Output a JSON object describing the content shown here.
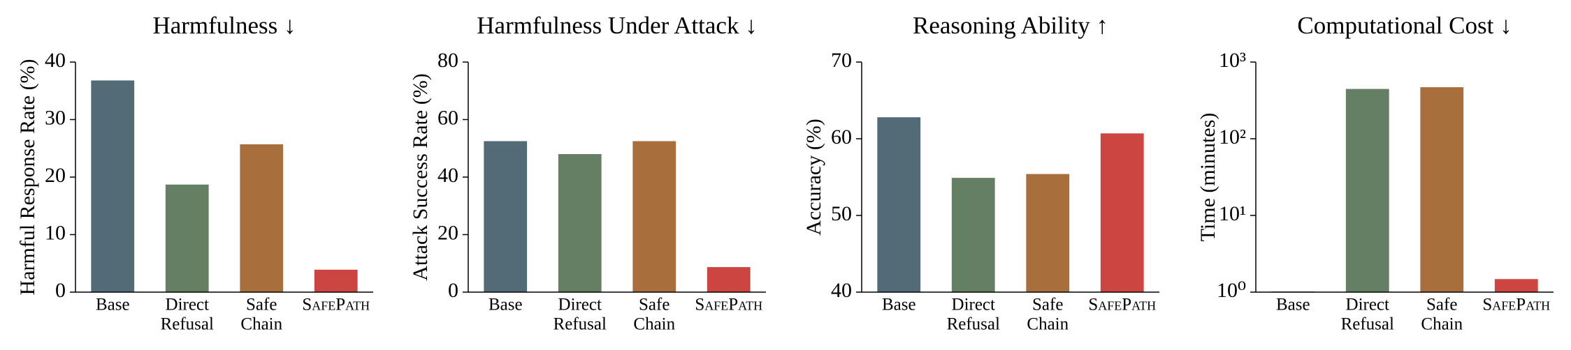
{
  "chart_data": [
    {
      "type": "bar",
      "title": "Harmfulness ↓",
      "y_label": "Harmful Response Rate (%)",
      "categories": [
        "Base",
        [
          "Direct",
          "Refusal"
        ],
        [
          "Safe",
          "Chain"
        ],
        "SafePath"
      ],
      "values": [
        36.8,
        18.7,
        25.7,
        3.9
      ],
      "colors": [
        "#536b76",
        "#647f63",
        "#a86f3c",
        "#cc4540"
      ],
      "ylim": [
        0,
        40
      ],
      "yticks": [
        0,
        10,
        20,
        30,
        40
      ],
      "log_scale": false
    },
    {
      "type": "bar",
      "title": "Harmfulness Under Attack ↓",
      "y_label": "Attack Success Rate (%)",
      "categories": [
        "Base",
        [
          "Direct",
          "Refusal"
        ],
        [
          "Safe",
          "Chain"
        ],
        "SafePath"
      ],
      "values": [
        52.5,
        48.0,
        52.5,
        8.7
      ],
      "colors": [
        "#536b76",
        "#647f63",
        "#a86f3c",
        "#cc4540"
      ],
      "ylim": [
        0,
        80
      ],
      "yticks": [
        0,
        20,
        40,
        60,
        80
      ],
      "log_scale": false
    },
    {
      "type": "bar",
      "title": "Reasoning Ability ↑",
      "y_label": "Accuracy (%)",
      "categories": [
        "Base",
        [
          "Direct",
          "Refusal"
        ],
        [
          "Safe",
          "Chain"
        ],
        "SafePath"
      ],
      "values": [
        62.8,
        54.9,
        55.4,
        60.7
      ],
      "colors": [
        "#536b76",
        "#647f63",
        "#a86f3c",
        "#cc4540"
      ],
      "ylim": [
        40,
        70
      ],
      "yticks": [
        40,
        50,
        60,
        70
      ],
      "log_scale": false
    },
    {
      "type": "bar",
      "title": "Computational Cost ↓",
      "y_label": "Time (minutes)",
      "categories": [
        "Base",
        [
          "Direct",
          "Refusal"
        ],
        [
          "Safe",
          "Chain"
        ],
        "SafePath"
      ],
      "values": [
        1.02,
        446,
        470,
        1.48
      ],
      "colors": [
        "#536b76",
        "#647f63",
        "#a86f3c",
        "#cc4540"
      ],
      "ylim": [
        1,
        1000
      ],
      "yticks": [
        {
          "value": 1,
          "label": "10⁰"
        },
        {
          "value": 10,
          "label": "10¹"
        },
        {
          "value": 100,
          "label": "10²"
        },
        {
          "value": 1000,
          "label": "10³"
        }
      ],
      "log_scale": true
    }
  ]
}
